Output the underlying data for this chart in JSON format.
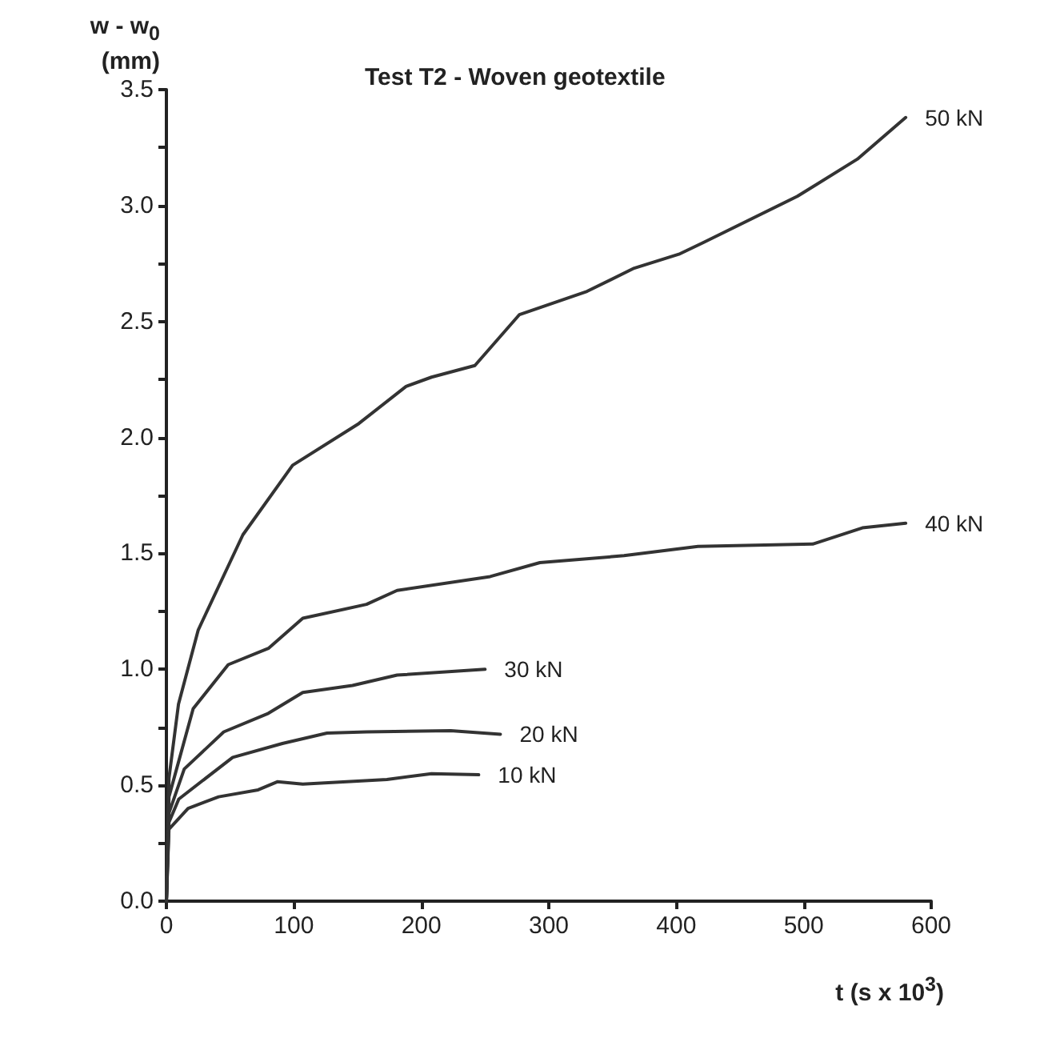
{
  "chart_data": {
    "type": "line",
    "title": "Test T2 - Woven geotextile",
    "xlabel": "t (s x 10$^{3}$)",
    "ylabel": "w - w$_{0}$\n(mm)",
    "xlim": [
      0,
      600
    ],
    "xticks": [
      0,
      100,
      200,
      300,
      400,
      500,
      600
    ],
    "ylim": [
      0,
      3.5
    ],
    "yticks": [
      {
        "value": 0,
        "label": "0.0"
      },
      {
        "value": 0.25,
        "label": null
      },
      0.5,
      {
        "value": 0.75,
        "label": null
      },
      {
        "value": 1,
        "label": "1.0"
      },
      {
        "value": 1.25,
        "label": null
      },
      1.5,
      {
        "value": 1.75,
        "label": null
      },
      {
        "value": 2,
        "label": "2.0"
      },
      {
        "value": 2.25,
        "label": null
      },
      2.5,
      {
        "value": 2.75,
        "label": null
      },
      {
        "value": 3,
        "label": "3.0"
      },
      {
        "value": 3.25,
        "label": null
      },
      3.5
    ],
    "grid": false,
    "legend": false,
    "marker": "none",
    "line_style": "solid",
    "series": [
      {
        "name": "50 kN",
        "color": "#333333",
        "x": [
          0,
          2,
          9.5,
          25,
          60,
          99,
          151,
          188,
          208,
          242,
          277,
          330,
          367,
          402,
          421,
          495,
          542,
          580
        ],
        "values": [
          0,
          0.53,
          0.85,
          1.17,
          1.58,
          1.88,
          2.06,
          2.22,
          2.26,
          2.31,
          2.53,
          2.63,
          2.73,
          2.79,
          2.84,
          3.04,
          3.2,
          3.38
        ]
      },
      {
        "name": "40 kN",
        "color": "#333333",
        "x": [
          0,
          2,
          21,
          48.5,
          80,
          107,
          157,
          181,
          254,
          293,
          359,
          417,
          507,
          546,
          580
        ],
        "values": [
          0,
          0.45,
          0.83,
          1.02,
          1.09,
          1.22,
          1.28,
          1.34,
          1.4,
          1.46,
          1.49,
          1.53,
          1.54,
          1.61,
          1.63
        ]
      },
      {
        "name": "30 kN",
        "color": "#333333",
        "x": [
          0,
          2,
          14,
          45,
          80,
          107,
          146,
          181,
          250
        ],
        "values": [
          0,
          0.38,
          0.57,
          0.73,
          0.81,
          0.9,
          0.93,
          0.975,
          1.0
        ]
      },
      {
        "name": "20 kN",
        "color": "#333333",
        "x": [
          0,
          2,
          9.7,
          52,
          91,
          126,
          157,
          223,
          262
        ],
        "values": [
          0,
          0.34,
          0.44,
          0.62,
          0.68,
          0.725,
          0.73,
          0.735,
          0.72
        ]
      },
      {
        "name": "10 kN",
        "color": "#333333",
        "x": [
          0,
          2,
          17,
          41,
          72,
          87,
          107,
          173,
          208,
          245
        ],
        "values": [
          0,
          0.31,
          0.4,
          0.45,
          0.48,
          0.515,
          0.505,
          0.525,
          0.55,
          0.545
        ]
      }
    ]
  }
}
